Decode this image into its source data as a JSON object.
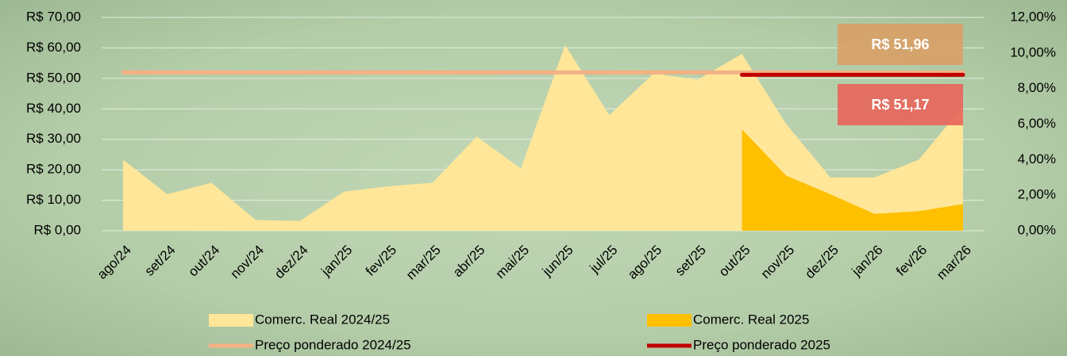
{
  "chart_data": {
    "type": "combo",
    "categories": [
      "ago/24",
      "set/24",
      "out/24",
      "nov/24",
      "dez/24",
      "jan/25",
      "fev/25",
      "mar/25",
      "abr/25",
      "mai/25",
      "jun/25",
      "jul/25",
      "ago/25",
      "set/25",
      "out/25",
      "nov/25",
      "dez/25",
      "jan/26",
      "fev/26",
      "mar/26"
    ],
    "ylim": [
      0,
      70
    ],
    "yticks": [
      {
        "value": 0,
        "label": "R$ 0,00"
      },
      {
        "value": 10,
        "label": "R$ 10,00"
      },
      {
        "value": 20,
        "label": "R$ 20,00"
      },
      {
        "value": 30,
        "label": "R$ 30,00"
      },
      {
        "value": 40,
        "label": "R$ 40,00"
      },
      {
        "value": 50,
        "label": "R$ 50,00"
      },
      {
        "value": 60,
        "label": "R$ 60,00"
      },
      {
        "value": 70,
        "label": "R$ 70,00"
      }
    ],
    "y2lim": [
      0,
      12
    ],
    "y2ticks": [
      {
        "value": 0,
        "label": "0,00%"
      },
      {
        "value": 2,
        "label": "2,00%"
      },
      {
        "value": 4,
        "label": "4,00%"
      },
      {
        "value": 6,
        "label": "6,00%"
      },
      {
        "value": 8,
        "label": "8,00%"
      },
      {
        "value": 10,
        "label": "10,00%"
      },
      {
        "value": 12,
        "label": "12,00%"
      }
    ],
    "grid": true,
    "series": [
      {
        "name": "Comerc. Real 2024/25",
        "type": "area",
        "axis": "y2",
        "color": "#FFE699",
        "values": [
          4.0,
          2.05,
          2.7,
          0.6,
          0.55,
          2.2,
          2.5,
          2.7,
          5.3,
          3.5,
          10.45,
          6.5,
          8.85,
          8.5,
          9.95,
          6.0,
          3.0,
          3.0,
          4.0,
          7.0
        ]
      },
      {
        "name": "Comerc. Real 2025",
        "type": "area",
        "axis": "y2",
        "color": "#FFC000",
        "values": [
          null,
          null,
          null,
          null,
          null,
          null,
          null,
          null,
          null,
          null,
          null,
          null,
          null,
          null,
          5.7,
          3.1,
          2.05,
          0.95,
          1.1,
          1.5
        ]
      },
      {
        "name": "Preço ponderado 2024/25",
        "type": "line",
        "color": "#F4B183",
        "label_color": "#D9A066",
        "values": [
          51.96,
          51.96,
          51.96,
          51.96,
          51.96,
          51.96,
          51.96,
          51.96,
          51.96,
          51.96,
          51.96,
          51.96,
          51.96,
          51.96,
          51.96,
          51.96,
          51.96,
          51.96,
          51.96,
          51.96
        ],
        "value_labels": [
          null,
          null,
          null,
          null,
          null,
          null,
          null,
          null,
          null,
          null,
          null,
          null,
          null,
          null,
          null,
          null,
          null,
          null,
          null,
          "R$ 51,96"
        ]
      },
      {
        "name": "Preço ponderado 2025",
        "type": "line",
        "color": "#C00000",
        "label_color": "#E8645A",
        "values": [
          null,
          null,
          null,
          null,
          null,
          null,
          null,
          null,
          null,
          null,
          null,
          null,
          null,
          null,
          51.17,
          51.17,
          51.17,
          51.17,
          51.17,
          51.17
        ],
        "value_labels": [
          null,
          null,
          null,
          null,
          null,
          null,
          null,
          null,
          null,
          null,
          null,
          null,
          null,
          null,
          null,
          null,
          null,
          null,
          null,
          "R$ 51,17"
        ]
      }
    ]
  }
}
